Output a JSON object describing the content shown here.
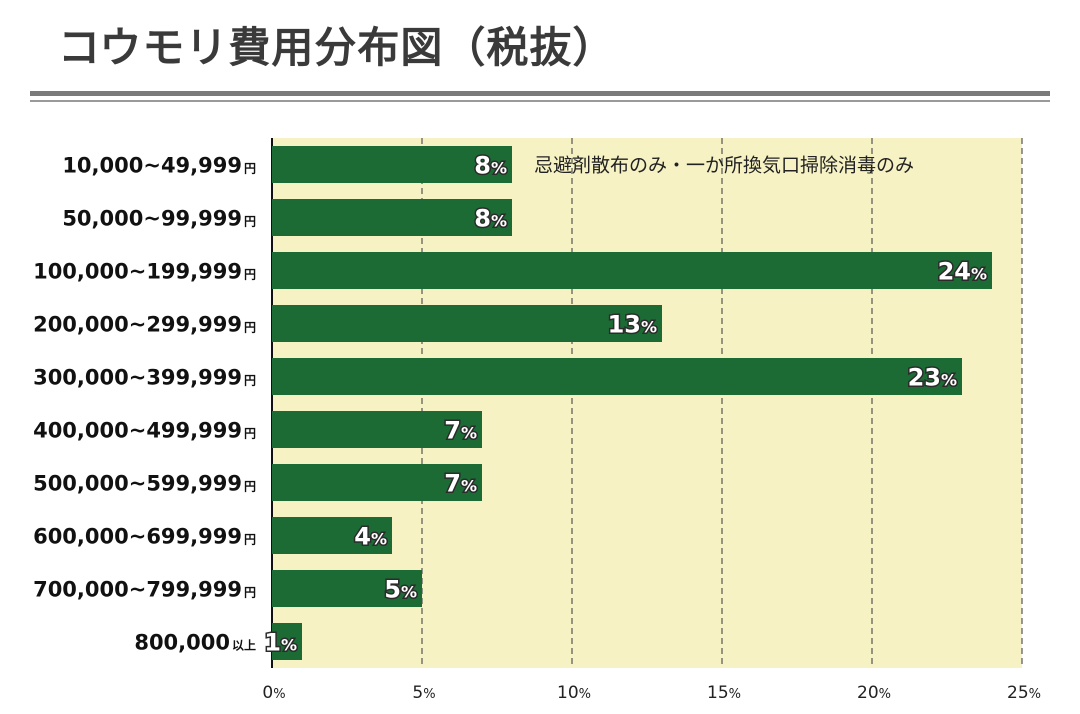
{
  "chart_data": {
    "type": "bar",
    "orientation": "horizontal",
    "title": "コウモリ費用分布図（税抜）",
    "categories": [
      {
        "amount": "10,000~49,999",
        "unit": "円"
      },
      {
        "amount": "50,000~99,999",
        "unit": "円"
      },
      {
        "amount": "100,000~199,999",
        "unit": "円"
      },
      {
        "amount": "200,000~299,999",
        "unit": "円"
      },
      {
        "amount": "300,000~399,999",
        "unit": "円"
      },
      {
        "amount": "400,000~499,999",
        "unit": "円"
      },
      {
        "amount": "500,000~599,999",
        "unit": "円"
      },
      {
        "amount": "600,000~699,999",
        "unit": "円"
      },
      {
        "amount": "700,000~799,999",
        "unit": "円"
      },
      {
        "amount": "800,000",
        "unit": "以上"
      }
    ],
    "values": [
      8,
      8,
      24,
      13,
      23,
      7,
      7,
      4,
      5,
      1
    ],
    "value_suffix": "%",
    "xlim": [
      0,
      25
    ],
    "xticks": [
      0,
      5,
      10,
      15,
      20,
      25
    ],
    "tick_suffix": "%",
    "grid": "vertical dashed",
    "annotation": "忌避剤散布のみ・一か所換気口掃除消毒のみ",
    "colors": {
      "bar": "#1c6b35",
      "plot_bg": "#f6f2c4",
      "grid": "#555555",
      "label_stroke": "#2b2b2b"
    }
  }
}
